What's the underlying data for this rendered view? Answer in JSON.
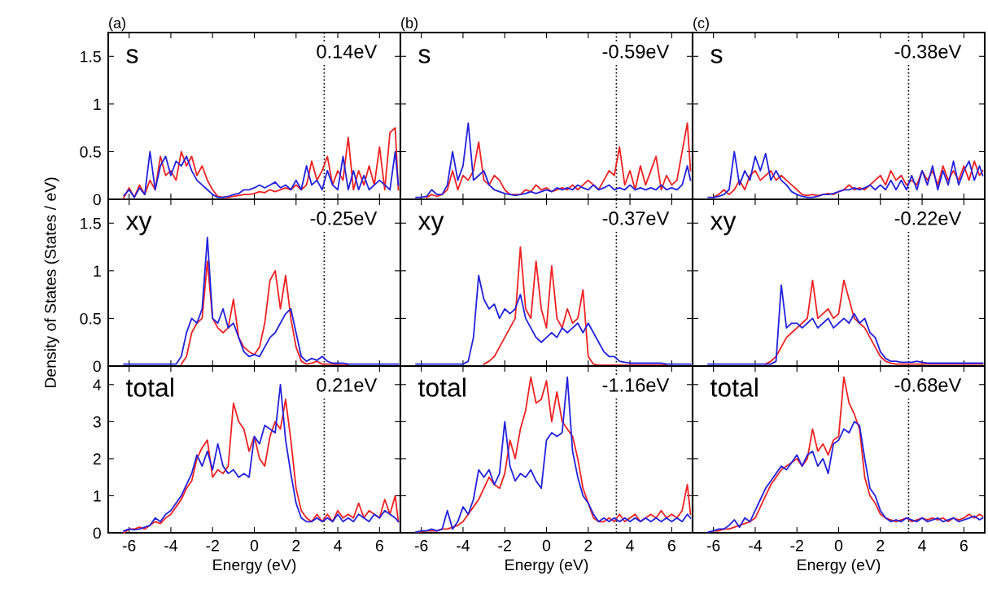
{
  "chart_data": [
    {
      "type": "line",
      "title": "(a)",
      "annotations": [
        "s",
        "0.14eV"
      ],
      "xlim": [
        -7,
        7
      ],
      "ylim": [
        0,
        1.75
      ],
      "xticks": [
        -6,
        -4,
        -2,
        0,
        2,
        4,
        6
      ],
      "yticks": [
        0,
        0.5,
        1,
        1.5
      ],
      "tick_labels": "y",
      "ref_lines": [
        {
          "axis": "x",
          "value": 3.35,
          "line_style": "dotted",
          "color": "#000000"
        }
      ],
      "x": [
        -6.25,
        -6,
        -5.75,
        -5.5,
        -5.25,
        -5,
        -4.75,
        -4.5,
        -4.25,
        -4,
        -3.75,
        -3.5,
        -3.25,
        -3,
        -2.75,
        -2.5,
        -2.25,
        -2,
        -1.75,
        -1.5,
        -1.25,
        -1,
        -0.75,
        -0.5,
        -0.25,
        0,
        0.25,
        0.5,
        0.75,
        1,
        1.25,
        1.5,
        1.75,
        2,
        2.25,
        2.5,
        2.75,
        3,
        3.25,
        3.5,
        3.75,
        4,
        4.25,
        4.5,
        4.75,
        5,
        5.25,
        5.5,
        5.75,
        6,
        6.25,
        6.5,
        6.75,
        6.9
      ],
      "series": [
        {
          "color": "#ee2222",
          "values": [
            0.02,
            0.12,
            0.02,
            0.15,
            0.05,
            0.2,
            0.1,
            0.45,
            0.25,
            0.3,
            0.2,
            0.5,
            0.35,
            0.45,
            0.25,
            0.35,
            0.2,
            0.1,
            0.03,
            0.02,
            0.02,
            0.03,
            0.04,
            0.05,
            0.05,
            0.06,
            0.08,
            0.07,
            0.1,
            0.08,
            0.1,
            0.12,
            0.1,
            0.15,
            0.1,
            0.15,
            0.4,
            0.2,
            0.3,
            0.45,
            0.15,
            0.3,
            0.2,
            0.65,
            0.1,
            0.3,
            0.15,
            0.35,
            0.15,
            0.55,
            0.1,
            0.7,
            0.75,
            0.1
          ]
        },
        {
          "color": "#2222dd",
          "values": [
            0.04,
            0.1,
            0.02,
            0.12,
            0.05,
            0.5,
            0.1,
            0.35,
            0.45,
            0.25,
            0.4,
            0.35,
            0.45,
            0.3,
            0.2,
            0.15,
            0.1,
            0.05,
            0.02,
            0.02,
            0.03,
            0.05,
            0.06,
            0.1,
            0.1,
            0.12,
            0.15,
            0.12,
            0.15,
            0.18,
            0.12,
            0.15,
            0.1,
            0.2,
            0.1,
            0.35,
            0.15,
            0.2,
            0.1,
            0.3,
            0.15,
            0.1,
            0.45,
            0.1,
            0.3,
            0.1,
            0.25,
            0.1,
            0.15,
            0.2,
            0.15,
            0.1,
            0.5,
            0.15
          ]
        }
      ]
    },
    {
      "type": "line",
      "title": "(b)",
      "annotations": [
        "s",
        "-0.59eV"
      ],
      "xlim": [
        -7,
        7
      ],
      "ylim": [
        0,
        1.75
      ],
      "xticks": [
        -6,
        -4,
        -2,
        0,
        2,
        4,
        6
      ],
      "yticks": [
        0,
        0.5,
        1,
        1.5
      ],
      "tick_labels": false,
      "ref_lines": [
        {
          "axis": "x",
          "value": 3.35,
          "line_style": "dotted",
          "color": "#000000"
        }
      ],
      "x": [
        -6.25,
        -6,
        -5.75,
        -5.5,
        -5.25,
        -5,
        -4.75,
        -4.5,
        -4.25,
        -4,
        -3.75,
        -3.5,
        -3.25,
        -3,
        -2.75,
        -2.5,
        -2.25,
        -2,
        -1.75,
        -1.5,
        -1.25,
        -1,
        -0.75,
        -0.5,
        -0.25,
        0,
        0.25,
        0.5,
        0.75,
        1,
        1.25,
        1.5,
        1.75,
        2,
        2.25,
        2.5,
        2.75,
        3,
        3.25,
        3.5,
        3.75,
        4,
        4.25,
        4.5,
        4.75,
        5,
        5.25,
        5.5,
        5.75,
        6,
        6.25,
        6.5,
        6.75,
        6.9
      ],
      "series": [
        {
          "color": "#ee2222",
          "values": [
            null,
            null,
            0.02,
            0.05,
            0.03,
            0.05,
            0.1,
            0.3,
            0.1,
            0.25,
            0.2,
            0.3,
            0.6,
            0.2,
            0.15,
            0.25,
            0.2,
            0.1,
            0.05,
            0.05,
            0.05,
            0.1,
            0.08,
            0.15,
            0.1,
            0.12,
            0.08,
            0.1,
            0.12,
            0.1,
            0.15,
            0.1,
            0.15,
            0.2,
            0.15,
            0.1,
            0.2,
            0.3,
            0.25,
            0.55,
            0.15,
            0.3,
            0.1,
            0.35,
            0.15,
            0.3,
            0.45,
            0.1,
            0.25,
            0.15,
            0.2,
            0.5,
            0.8,
            0.3
          ]
        },
        {
          "color": "#2222dd",
          "values": [
            0.02,
            0.02,
            0.03,
            0.1,
            0.05,
            0.05,
            0.15,
            0.5,
            0.2,
            0.35,
            0.8,
            0.2,
            0.25,
            0.3,
            0.15,
            0.1,
            0.08,
            0.06,
            0.05,
            0.04,
            0.05,
            0.06,
            0.08,
            0.06,
            0.08,
            0.1,
            0.08,
            0.12,
            0.1,
            0.12,
            0.1,
            0.15,
            0.12,
            0.1,
            0.15,
            0.1,
            0.12,
            0.15,
            0.1,
            0.12,
            0.1,
            0.15,
            0.1,
            0.12,
            0.1,
            0.12,
            0.1,
            0.15,
            0.1,
            0.12,
            0.1,
            0.15,
            0.35,
            0.2
          ]
        }
      ]
    },
    {
      "type": "line",
      "title": "(c)",
      "annotations": [
        "s",
        "-0.38eV"
      ],
      "xlim": [
        -7,
        7
      ],
      "ylim": [
        0,
        1.75
      ],
      "xticks": [
        -6,
        -4,
        -2,
        0,
        2,
        4,
        6
      ],
      "yticks": [
        0,
        0.5,
        1,
        1.5
      ],
      "tick_labels": false,
      "ref_lines": [
        {
          "axis": "x",
          "value": 3.35,
          "line_style": "dotted",
          "color": "#000000"
        }
      ],
      "x": [
        -6.25,
        -6,
        -5.75,
        -5.5,
        -5.25,
        -5,
        -4.75,
        -4.5,
        -4.25,
        -4,
        -3.75,
        -3.5,
        -3.25,
        -3,
        -2.75,
        -2.5,
        -2.25,
        -2,
        -1.75,
        -1.5,
        -1.25,
        -1,
        -0.75,
        -0.5,
        -0.25,
        0,
        0.25,
        0.5,
        0.75,
        1,
        1.25,
        1.5,
        1.75,
        2,
        2.25,
        2.5,
        2.75,
        3,
        3.25,
        3.5,
        3.75,
        4,
        4.25,
        4.5,
        4.75,
        5,
        5.25,
        5.5,
        5.75,
        6,
        6.25,
        6.5,
        6.75,
        6.9
      ],
      "series": [
        {
          "color": "#ee2222",
          "values": [
            null,
            0.02,
            0.05,
            0.1,
            0.05,
            0.1,
            0.2,
            0.1,
            0.25,
            0.3,
            0.2,
            0.25,
            0.3,
            0.2,
            0.25,
            0.2,
            0.15,
            0.1,
            0.05,
            0.04,
            0.05,
            0.04,
            0.05,
            0.06,
            0.05,
            0.08,
            0.1,
            0.15,
            0.1,
            0.12,
            0.1,
            0.15,
            0.2,
            0.25,
            0.15,
            0.3,
            0.2,
            0.25,
            0.15,
            0.2,
            0.15,
            0.3,
            0.2,
            0.3,
            0.15,
            0.35,
            0.2,
            0.3,
            0.2,
            0.35,
            0.2,
            0.4,
            0.25,
            0.3
          ]
        },
        {
          "color": "#2222dd",
          "values": [
            0.02,
            0.02,
            0.03,
            0.05,
            0.1,
            0.5,
            0.15,
            0.3,
            0.2,
            0.45,
            0.3,
            0.48,
            0.2,
            0.3,
            0.2,
            0.15,
            0.08,
            0.05,
            0.03,
            0.02,
            0.02,
            0.03,
            0.05,
            0.05,
            0.06,
            0.08,
            0.1,
            0.1,
            0.12,
            0.1,
            0.12,
            0.15,
            0.1,
            0.15,
            0.1,
            0.2,
            0.1,
            0.2,
            0.1,
            0.25,
            0.1,
            0.3,
            0.15,
            0.35,
            0.1,
            0.3,
            0.15,
            0.4,
            0.15,
            0.3,
            0.4,
            0.2,
            0.35,
            0.25
          ]
        }
      ]
    },
    {
      "type": "line",
      "ylabel": "Density of States (States / eV)",
      "annotations": [
        "xy",
        "-0.25eV"
      ],
      "xlim": [
        -7,
        7
      ],
      "ylim": [
        0,
        1.75
      ],
      "xticks": [
        -6,
        -4,
        -2,
        0,
        2,
        4,
        6
      ],
      "yticks": [
        0,
        0.5,
        1,
        1.5
      ],
      "tick_labels": "y",
      "ref_lines": [
        {
          "axis": "x",
          "value": 3.35,
          "line_style": "dotted",
          "color": "#000000"
        }
      ],
      "x": [
        -6.25,
        -6,
        -5.75,
        -5.5,
        -5.25,
        -5,
        -4.75,
        -4.5,
        -4.25,
        -4,
        -3.75,
        -3.5,
        -3.25,
        -3,
        -2.75,
        -2.5,
        -2.25,
        -2,
        -1.75,
        -1.5,
        -1.25,
        -1,
        -0.75,
        -0.5,
        -0.25,
        0,
        0.25,
        0.5,
        0.75,
        1,
        1.25,
        1.5,
        1.75,
        2,
        2.25,
        2.5,
        2.75,
        3,
        3.25,
        3.5,
        3.75,
        4,
        4.25,
        4.5,
        4.75,
        5,
        5.25,
        5.5,
        5.75,
        6,
        6.25,
        6.5,
        6.75,
        6.9
      ],
      "series": [
        {
          "color": "#ee2222",
          "values": [
            null,
            null,
            null,
            null,
            null,
            null,
            null,
            null,
            null,
            null,
            null,
            0.02,
            0.1,
            0.35,
            0.45,
            0.5,
            1.1,
            0.5,
            0.4,
            0.35,
            0.4,
            0.7,
            0.3,
            0.2,
            0.15,
            0.12,
            0.2,
            0.45,
            0.9,
            1.0,
            0.6,
            0.95,
            0.5,
            0.2,
            0.05,
            0.02,
            0.03,
            0.05,
            0.02,
            0.02,
            0.02,
            0.01,
            0.01,
            0.01,
            null,
            null,
            null,
            null,
            null,
            null,
            null,
            null,
            null,
            null
          ]
        },
        {
          "color": "#2222dd",
          "values": [
            0.02,
            0.02,
            0.02,
            0.02,
            0.02,
            0.02,
            0.02,
            0.02,
            0.02,
            0.02,
            0.02,
            0.1,
            0.35,
            0.5,
            0.45,
            0.6,
            1.35,
            0.5,
            0.45,
            0.6,
            0.4,
            0.45,
            0.3,
            0.15,
            0.1,
            0.12,
            0.1,
            0.2,
            0.3,
            0.35,
            0.45,
            0.55,
            0.6,
            0.35,
            0.1,
            0.05,
            0.08,
            0.06,
            0.1,
            0.05,
            0.03,
            0.03,
            0.03,
            0.02,
            0.02,
            0.02,
            0.02,
            0.02,
            0.02,
            0.02,
            0.02,
            0.02,
            0.02,
            0.02
          ]
        }
      ]
    },
    {
      "type": "line",
      "annotations": [
        "xy",
        "-0.37eV"
      ],
      "xlim": [
        -7,
        7
      ],
      "ylim": [
        0,
        1.75
      ],
      "xticks": [
        -6,
        -4,
        -2,
        0,
        2,
        4,
        6
      ],
      "yticks": [
        0,
        0.5,
        1,
        1.5
      ],
      "tick_labels": false,
      "ref_lines": [
        {
          "axis": "x",
          "value": 3.35,
          "line_style": "dotted",
          "color": "#000000"
        }
      ],
      "x": [
        -6.25,
        -6,
        -5.75,
        -5.5,
        -5.25,
        -5,
        -4.75,
        -4.5,
        -4.25,
        -4,
        -3.75,
        -3.5,
        -3.25,
        -3,
        -2.75,
        -2.5,
        -2.25,
        -2,
        -1.75,
        -1.5,
        -1.25,
        -1,
        -0.75,
        -0.5,
        -0.25,
        0,
        0.25,
        0.5,
        0.75,
        1,
        1.25,
        1.5,
        1.75,
        2,
        2.25,
        2.5,
        2.75,
        3,
        3.25,
        3.5,
        3.75,
        4,
        4.25,
        4.5,
        4.75,
        5,
        5.25,
        5.5,
        5.75,
        6,
        6.25,
        6.5,
        6.75,
        6.9
      ],
      "series": [
        {
          "color": "#ee2222",
          "values": [
            null,
            null,
            null,
            null,
            null,
            null,
            null,
            null,
            null,
            null,
            null,
            null,
            null,
            0.02,
            0.05,
            0.1,
            0.2,
            0.3,
            0.4,
            0.5,
            1.25,
            0.6,
            0.5,
            1.1,
            0.6,
            0.4,
            1.05,
            0.5,
            0.4,
            0.6,
            0.45,
            0.5,
            0.8,
            0.1,
            0.02,
            0.01,
            0.01,
            0.01,
            0.01,
            0.01,
            0.01,
            0.01,
            0.01,
            0.01,
            0.01,
            0.01,
            0.01,
            0.01,
            0.01,
            null,
            null,
            null,
            null,
            null
          ]
        },
        {
          "color": "#2222dd",
          "values": [
            0.02,
            0.02,
            0.02,
            0.02,
            0.02,
            0.02,
            0.02,
            0.02,
            0.02,
            0.02,
            0.05,
            0.3,
            0.95,
            0.7,
            0.6,
            0.65,
            0.5,
            0.6,
            0.55,
            0.6,
            0.75,
            0.5,
            0.4,
            0.3,
            0.25,
            0.3,
            0.35,
            0.3,
            0.4,
            0.35,
            0.4,
            0.45,
            0.35,
            0.45,
            0.35,
            0.25,
            0.15,
            0.1,
            0.1,
            0.05,
            0.04,
            0.03,
            0.03,
            0.03,
            0.03,
            0.03,
            0.03,
            0.03,
            0.02,
            0.02,
            0.02,
            0.02,
            0.02,
            0.02
          ]
        }
      ]
    },
    {
      "type": "line",
      "annotations": [
        "xy",
        "-0.22eV"
      ],
      "xlim": [
        -7,
        7
      ],
      "ylim": [
        0,
        1.75
      ],
      "xticks": [
        -6,
        -4,
        -2,
        0,
        2,
        4,
        6
      ],
      "yticks": [
        0,
        0.5,
        1,
        1.5
      ],
      "tick_labels": false,
      "ref_lines": [
        {
          "axis": "x",
          "value": 3.35,
          "line_style": "dotted",
          "color": "#000000"
        }
      ],
      "x": [
        -6.25,
        -6,
        -5.75,
        -5.5,
        -5.25,
        -5,
        -4.75,
        -4.5,
        -4.25,
        -4,
        -3.75,
        -3.5,
        -3.25,
        -3,
        -2.75,
        -2.5,
        -2.25,
        -2,
        -1.75,
        -1.5,
        -1.25,
        -1,
        -0.75,
        -0.5,
        -0.25,
        0,
        0.25,
        0.5,
        0.75,
        1,
        1.25,
        1.5,
        1.75,
        2,
        2.25,
        2.5,
        2.75,
        3,
        3.25,
        3.5,
        3.75,
        4,
        4.25,
        4.5,
        4.75,
        5,
        5.25,
        5.5,
        5.75,
        6,
        6.25,
        6.5,
        6.75,
        6.9
      ],
      "series": [
        {
          "color": "#ee2222",
          "values": [
            null,
            null,
            null,
            null,
            null,
            null,
            null,
            null,
            null,
            null,
            null,
            0.02,
            0.05,
            0.1,
            0.2,
            0.3,
            0.35,
            0.4,
            0.45,
            0.5,
            0.9,
            0.5,
            0.55,
            0.6,
            0.5,
            0.55,
            0.9,
            0.7,
            0.5,
            0.45,
            0.4,
            0.3,
            0.2,
            0.1,
            0.05,
            0.03,
            0.02,
            0.02,
            0.02,
            0.02,
            0.02,
            0.02,
            0.02,
            0.02,
            0.02,
            0.02,
            0.02,
            0.02,
            0.02,
            0.02,
            0.02,
            0.02,
            0.02,
            0.02
          ]
        },
        {
          "color": "#2222dd",
          "values": [
            0.02,
            0.02,
            0.02,
            0.02,
            0.02,
            0.02,
            0.02,
            0.02,
            0.02,
            0.02,
            0.02,
            0.02,
            0.02,
            0.05,
            0.85,
            0.4,
            0.45,
            0.45,
            0.4,
            0.45,
            0.5,
            0.4,
            0.45,
            0.5,
            0.4,
            0.45,
            0.5,
            0.45,
            0.55,
            0.45,
            0.5,
            0.35,
            0.3,
            0.15,
            0.08,
            0.05,
            0.05,
            0.04,
            0.04,
            0.04,
            0.05,
            0.04,
            0.03,
            0.03,
            0.03,
            0.03,
            0.03,
            0.03,
            0.03,
            0.03,
            0.03,
            0.03,
            0.03,
            0.03
          ]
        }
      ]
    },
    {
      "type": "line",
      "xlabel": "Energy (eV)",
      "annotations": [
        "total",
        "0.21eV"
      ],
      "xlim": [
        -7,
        7
      ],
      "ylim": [
        0,
        4.5
      ],
      "xticks": [
        -6,
        -4,
        -2,
        0,
        2,
        4,
        6
      ],
      "yticks": [
        0,
        1,
        2,
        3,
        4
      ],
      "ref_lines": [
        {
          "axis": "x",
          "value": 3.35,
          "line_style": "dotted",
          "color": "#000000"
        }
      ],
      "x": [
        -6.25,
        -6,
        -5.75,
        -5.5,
        -5.25,
        -5,
        -4.75,
        -4.5,
        -4.25,
        -4,
        -3.75,
        -3.5,
        -3.25,
        -3,
        -2.75,
        -2.5,
        -2.25,
        -2,
        -1.75,
        -1.5,
        -1.25,
        -1,
        -0.75,
        -0.5,
        -0.25,
        0,
        0.25,
        0.5,
        0.75,
        1,
        1.25,
        1.5,
        1.75,
        2,
        2.25,
        2.5,
        2.75,
        3,
        3.25,
        3.5,
        3.75,
        4,
        4.25,
        4.5,
        4.75,
        5,
        5.25,
        5.5,
        5.75,
        6,
        6.25,
        6.5,
        6.75,
        6.9
      ],
      "series": [
        {
          "color": "#ee2222",
          "values": [
            0.0,
            0.1,
            0.1,
            0.15,
            0.1,
            0.2,
            0.3,
            0.25,
            0.4,
            0.5,
            0.7,
            0.9,
            1.2,
            1.4,
            2.0,
            2.3,
            2.5,
            1.5,
            1.7,
            1.6,
            1.8,
            3.5,
            3.0,
            2.8,
            2.2,
            2.6,
            2.0,
            1.8,
            2.6,
            3.0,
            2.8,
            3.6,
            2.5,
            1.2,
            0.6,
            0.4,
            0.3,
            0.5,
            0.3,
            0.5,
            0.3,
            0.6,
            0.4,
            0.5,
            0.4,
            0.8,
            0.4,
            0.6,
            0.5,
            0.4,
            0.9,
            0.5,
            1.0,
            0.3
          ]
        },
        {
          "color": "#2222dd",
          "values": [
            0.05,
            0.1,
            0.08,
            0.1,
            0.15,
            0.2,
            0.4,
            0.3,
            0.5,
            0.6,
            0.8,
            1.0,
            1.3,
            1.6,
            2.1,
            1.8,
            2.2,
            1.7,
            2.4,
            1.8,
            1.6,
            1.7,
            1.5,
            1.6,
            1.5,
            2.6,
            2.4,
            2.9,
            2.8,
            2.7,
            4.0,
            2.5,
            1.6,
            0.8,
            0.4,
            0.3,
            0.3,
            0.4,
            0.3,
            0.4,
            0.3,
            0.5,
            0.3,
            0.4,
            0.3,
            0.5,
            0.4,
            0.3,
            0.5,
            0.4,
            0.6,
            0.5,
            0.4,
            0.3
          ]
        }
      ]
    },
    {
      "type": "line",
      "xlabel": "Energy (eV)",
      "annotations": [
        "total",
        "-1.16eV"
      ],
      "xlim": [
        -7,
        7
      ],
      "ylim": [
        0,
        4.5
      ],
      "xticks": [
        -6,
        -4,
        -2,
        0,
        2,
        4,
        6
      ],
      "yticks": [
        0,
        1,
        2,
        3,
        4
      ],
      "tick_labels": "x",
      "ref_lines": [
        {
          "axis": "x",
          "value": 3.35,
          "line_style": "dotted",
          "color": "#000000"
        }
      ],
      "x": [
        -6.25,
        -6,
        -5.75,
        -5.5,
        -5.25,
        -5,
        -4.75,
        -4.5,
        -4.25,
        -4,
        -3.75,
        -3.5,
        -3.25,
        -3,
        -2.75,
        -2.5,
        -2.25,
        -2,
        -1.75,
        -1.5,
        -1.25,
        -1,
        -0.75,
        -0.5,
        -0.25,
        0,
        0.25,
        0.5,
        0.75,
        1,
        1.25,
        1.5,
        1.75,
        2,
        2.25,
        2.5,
        2.75,
        3,
        3.25,
        3.5,
        3.75,
        4,
        4.25,
        4.5,
        4.75,
        5,
        5.25,
        5.5,
        5.75,
        6,
        6.25,
        6.5,
        6.75,
        6.9
      ],
      "series": [
        {
          "color": "#ee2222",
          "values": [
            0.02,
            0.03,
            0.05,
            0.05,
            0.05,
            0.1,
            0.1,
            0.15,
            0.2,
            0.3,
            0.5,
            0.7,
            0.9,
            1.2,
            1.5,
            1.3,
            1.2,
            1.6,
            2.5,
            2.0,
            2.8,
            3.3,
            4.2,
            3.5,
            3.6,
            4.1,
            3.0,
            3.8,
            3.0,
            2.8,
            2.6,
            2.0,
            1.2,
            0.8,
            0.4,
            0.3,
            0.3,
            0.4,
            0.3,
            0.5,
            0.3,
            0.4,
            0.5,
            0.3,
            0.4,
            0.5,
            0.4,
            0.6,
            0.4,
            0.5,
            0.4,
            0.6,
            1.3,
            0.5
          ]
        },
        {
          "color": "#2222dd",
          "values": [
            0.02,
            0.05,
            0.05,
            0.1,
            0.05,
            0.1,
            0.6,
            0.1,
            0.3,
            0.7,
            0.5,
            0.9,
            1.7,
            1.5,
            1.7,
            1.3,
            1.6,
            3.0,
            1.8,
            1.4,
            1.6,
            1.5,
            1.7,
            1.4,
            1.2,
            2.5,
            2.7,
            2.6,
            2.7,
            4.2,
            2.2,
            1.5,
            1.0,
            0.8,
            0.5,
            0.3,
            0.4,
            0.3,
            0.4,
            0.3,
            0.4,
            0.3,
            0.4,
            0.3,
            0.4,
            0.3,
            0.4,
            0.3,
            0.4,
            0.3,
            0.4,
            0.3,
            0.5,
            0.4
          ]
        }
      ]
    },
    {
      "type": "line",
      "xlabel": "Energy (eV)",
      "annotations": [
        "total",
        "-0.68eV"
      ],
      "xlim": [
        -7,
        7
      ],
      "ylim": [
        0,
        4.5
      ],
      "xticks": [
        -6,
        -4,
        -2,
        0,
        2,
        4,
        6
      ],
      "yticks": [
        0,
        1,
        2,
        3,
        4
      ],
      "tick_labels": "x",
      "ref_lines": [
        {
          "axis": "x",
          "value": 3.35,
          "line_style": "dotted",
          "color": "#000000"
        }
      ],
      "x": [
        -6.25,
        -6,
        -5.75,
        -5.5,
        -5.25,
        -5,
        -4.75,
        -4.5,
        -4.25,
        -4,
        -3.75,
        -3.5,
        -3.25,
        -3,
        -2.75,
        -2.5,
        -2.25,
        -2,
        -1.75,
        -1.5,
        -1.25,
        -1,
        -0.75,
        -0.5,
        -0.25,
        0,
        0.25,
        0.5,
        0.75,
        1,
        1.25,
        1.5,
        1.75,
        2,
        2.25,
        2.5,
        2.75,
        3,
        3.25,
        3.5,
        3.75,
        4,
        4.25,
        4.5,
        4.75,
        5,
        5.25,
        5.5,
        5.75,
        6,
        6.25,
        6.5,
        6.75,
        6.9
      ],
      "series": [
        {
          "color": "#ee2222",
          "values": [
            null,
            0.05,
            0.05,
            0.1,
            0.1,
            0.15,
            0.2,
            0.25,
            0.3,
            0.4,
            0.7,
            1.0,
            1.3,
            1.5,
            1.7,
            1.8,
            1.9,
            2.0,
            1.8,
            2.0,
            2.8,
            2.2,
            2.4,
            2.1,
            2.5,
            2.6,
            4.2,
            3.5,
            3.2,
            2.8,
            1.5,
            1.0,
            0.8,
            0.5,
            0.4,
            0.35,
            0.3,
            0.35,
            0.4,
            0.3,
            0.35,
            0.4,
            0.35,
            0.4,
            0.35,
            0.4,
            0.3,
            0.4,
            0.35,
            0.4,
            0.5,
            0.4,
            0.5,
            0.45
          ]
        },
        {
          "color": "#2222dd",
          "values": [
            0.02,
            0.05,
            0.1,
            0.1,
            0.2,
            0.35,
            0.15,
            0.4,
            0.3,
            0.6,
            0.9,
            1.2,
            1.4,
            1.6,
            1.8,
            1.7,
            1.9,
            2.1,
            1.8,
            2.1,
            2.2,
            1.8,
            2.0,
            1.6,
            2.4,
            2.5,
            2.8,
            2.7,
            3.0,
            2.9,
            2.0,
            1.2,
            1.0,
            0.6,
            0.4,
            0.3,
            0.35,
            0.3,
            0.4,
            0.35,
            0.3,
            0.4,
            0.3,
            0.35,
            0.4,
            0.3,
            0.35,
            0.4,
            0.3,
            0.35,
            0.4,
            0.45,
            0.35,
            0.4
          ]
        }
      ]
    }
  ]
}
